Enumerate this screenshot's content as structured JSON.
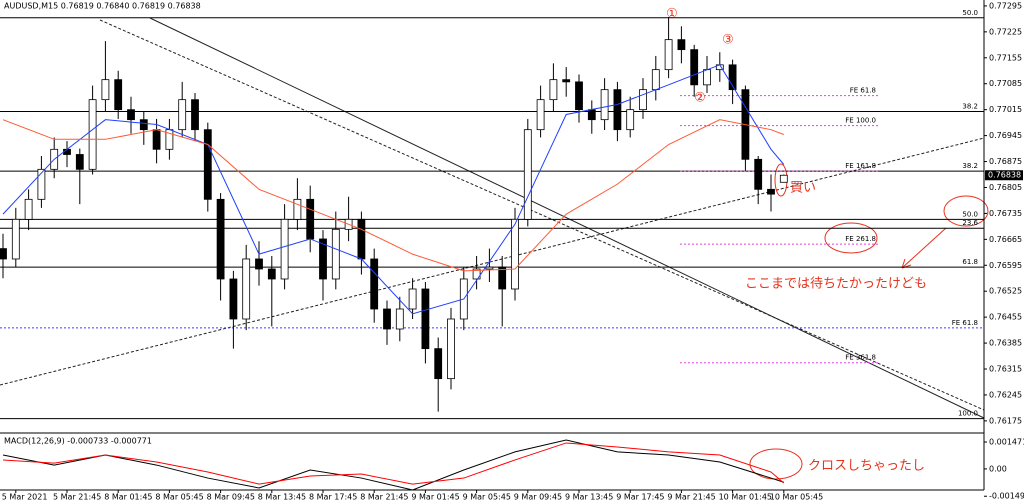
{
  "chart_data": [
    {
      "type": "candlestick",
      "title": "AUDUSD,M15  0.76819 0.76840 0.76819 0.76838",
      "categories": [
        null,
        "5 Mar 2021",
        null,
        null,
        null,
        "5 Mar 21:45",
        null,
        null,
        null,
        "8 Mar 01:45",
        null,
        null,
        null,
        "8 Mar 05:45",
        null,
        null,
        null,
        "8 Mar 09:45",
        null,
        null,
        null,
        "8 Mar 13:45",
        null,
        null,
        null,
        "8 Mar 17:45",
        null,
        null,
        null,
        "8 Mar 21:45",
        null,
        null,
        null,
        "9 Mar 01:45",
        null,
        null,
        null,
        "9 Mar 05:45",
        null,
        null,
        null,
        "9 Mar 09:45",
        null,
        null,
        null,
        "9 Mar 13:45",
        null,
        null,
        null,
        "9 Mar 17:45",
        null,
        null,
        null,
        "9 Mar 21:45",
        null,
        null,
        null,
        "10 Mar 01:45",
        null,
        null,
        null,
        "10 Mar 05:45"
      ],
      "open": [
        0.7664,
        0.76612,
        0.76719,
        0.76773,
        0.76854,
        0.76908,
        0.76894,
        0.76854,
        0.77042,
        0.77096,
        0.77015,
        0.76988,
        0.76961,
        0.76908,
        0.76961,
        0.77042,
        0.76961,
        0.76773,
        0.76558,
        0.7645,
        0.76612,
        0.76585,
        0.76558,
        0.76719,
        0.76773,
        0.76666,
        0.76558,
        0.76692,
        0.76719,
        0.76612,
        0.76477,
        0.76423,
        0.76477,
        0.76531,
        0.7637,
        0.76289,
        0.7645,
        0.76558,
        0.76585,
        0.7659,
        0.76531,
        0.76719,
        0.76961,
        0.77042,
        0.77096,
        0.7709,
        0.77015,
        0.76988,
        0.77069,
        0.76961,
        0.77015,
        0.77069,
        0.77123,
        0.77204,
        0.77177,
        0.77082,
        0.77123,
        0.77136,
        0.77069,
        0.76881,
        0.768,
        0.76819
      ],
      "high": [
        0.7668,
        0.7675,
        0.768,
        0.7689,
        0.7694,
        0.7693,
        0.7691,
        0.7708,
        0.772,
        0.7712,
        0.7705,
        0.7701,
        0.7699,
        0.7699,
        0.7709,
        0.7706,
        0.7698,
        0.7679,
        0.7658,
        0.7665,
        0.7666,
        0.7662,
        0.7676,
        0.7683,
        0.7681,
        0.7669,
        0.7674,
        0.7678,
        0.7674,
        0.7664,
        0.765,
        0.7651,
        0.7656,
        0.7655,
        0.764,
        0.7648,
        0.7659,
        0.7662,
        0.7664,
        0.7662,
        0.7675,
        0.7699,
        0.7708,
        0.7714,
        0.7713,
        0.7711,
        0.7704,
        0.771,
        0.7709,
        0.7705,
        0.771,
        0.7716,
        0.77265,
        0.7724,
        0.7719,
        0.7716,
        0.7717,
        0.7715,
        0.7708,
        0.7689,
        0.7684,
        0.7684
      ],
      "low": [
        0.7656,
        0.7659,
        0.7669,
        0.7675,
        0.7683,
        0.7686,
        0.7676,
        0.7684,
        0.7701,
        0.7699,
        0.7695,
        0.7692,
        0.7687,
        0.7688,
        0.7694,
        0.7693,
        0.7674,
        0.765,
        0.7637,
        0.7642,
        0.7654,
        0.7643,
        0.7653,
        0.7669,
        0.7663,
        0.765,
        0.7653,
        0.7666,
        0.7657,
        0.7644,
        0.7638,
        0.7639,
        0.7645,
        0.7633,
        0.762,
        0.7626,
        0.7642,
        0.7653,
        0.7655,
        0.7643,
        0.765,
        0.767,
        0.7694,
        0.7701,
        0.7705,
        0.7698,
        0.7695,
        0.7696,
        0.7693,
        0.7694,
        0.7699,
        0.7704,
        0.771,
        0.7714,
        0.7705,
        0.7706,
        0.7709,
        0.7703,
        0.7685,
        0.7676,
        0.7674,
        0.76819
      ],
      "close": [
        0.76612,
        0.76719,
        0.76773,
        0.76854,
        0.76908,
        0.76894,
        0.76854,
        0.77042,
        0.77096,
        0.77015,
        0.76988,
        0.76961,
        0.76908,
        0.76961,
        0.77042,
        0.76961,
        0.76773,
        0.76558,
        0.7645,
        0.76612,
        0.76585,
        0.76558,
        0.76719,
        0.76773,
        0.76666,
        0.76558,
        0.76692,
        0.76719,
        0.76612,
        0.76477,
        0.76423,
        0.76477,
        0.76531,
        0.7637,
        0.76289,
        0.7645,
        0.76558,
        0.76585,
        0.7659,
        0.76531,
        0.76719,
        0.76961,
        0.77042,
        0.77096,
        0.7709,
        0.77015,
        0.76988,
        0.77069,
        0.76961,
        0.77015,
        0.77069,
        0.77123,
        0.77204,
        0.77177,
        0.77082,
        0.77123,
        0.77136,
        0.77069,
        0.76881,
        0.768,
        0.76787,
        0.76838
      ],
      "overlays": [
        {
          "color": "#1f3fff",
          "x": [
            0,
            4,
            8,
            12,
            16,
            20,
            24,
            28,
            32,
            36,
            40,
            44,
            48,
            52,
            56,
            60,
            61
          ],
          "values": [
            0.76733,
            0.76881,
            0.76988,
            0.76975,
            0.76921,
            0.76625,
            0.76666,
            0.76612,
            0.76464,
            0.76504,
            0.76706,
            0.77002,
            0.77029,
            0.77082,
            0.77136,
            0.76908,
            0.76867
          ]
        },
        {
          "color": "#ff5a36",
          "x": [
            0,
            4,
            8,
            12,
            16,
            20,
            24,
            28,
            32,
            36,
            40,
            44,
            48,
            52,
            56,
            60,
            61
          ],
          "values": [
            0.76988,
            0.76935,
            0.76935,
            0.76961,
            0.76921,
            0.768,
            0.76746,
            0.76692,
            0.76625,
            0.7658,
            0.76585,
            0.76733,
            0.76814,
            0.76921,
            0.76988,
            0.76961,
            0.76948
          ]
        }
      ],
      "levels": [
        {
          "value": 0.77263,
          "label": "50.0",
          "style": "fibo"
        },
        {
          "value": 0.7701,
          "label": "38.2",
          "style": "fibo"
        },
        {
          "value": 0.76849,
          "label": "38.2",
          "style": "fibo"
        },
        {
          "value": 0.76719,
          "label": "50.0",
          "style": "fibo"
        },
        {
          "value": 0.76695,
          "label": "23.6",
          "style": "fibo"
        },
        {
          "value": 0.7659,
          "label": "61.8",
          "style": "fibo"
        },
        {
          "value": 0.76181,
          "label": "100.0",
          "style": "fibo"
        },
        {
          "value": 0.76426,
          "label": "FE 61.8",
          "style": "fe-long"
        },
        {
          "value": 0.77053,
          "label": "FE 61.8",
          "style": "fe"
        },
        {
          "value": 0.76972,
          "label": "FE 100.0",
          "style": "fe"
        },
        {
          "value": 0.76849,
          "label": "FE 161.8",
          "style": "fe"
        },
        {
          "value": 0.76652,
          "label": "FE 261.8",
          "style": "fe"
        },
        {
          "value": 0.76332,
          "label": "FE 361.8",
          "style": "fe"
        }
      ],
      "ylim": [
        0.76145,
        0.77311
      ],
      "yticks": [
        0.77295,
        0.77225,
        0.77155,
        0.77085,
        0.77015,
        0.76945,
        0.76875,
        0.76805,
        0.76735,
        0.76665,
        0.76595,
        0.76525,
        0.76455,
        0.76385,
        0.76315,
        0.76245,
        0.76175
      ],
      "annotations": [
        "①",
        "②",
        "③",
        "買い",
        "ここまでは待ちたかったけども",
        "クロスしちゃったし"
      ]
    },
    {
      "type": "line",
      "title": "MACD(12,26,9) -0.000733 -0.000771",
      "series": [
        {
          "color": "#000000",
          "x": [
            0,
            4,
            8,
            12,
            16,
            20,
            24,
            28,
            32,
            36,
            40,
            44,
            48,
            52,
            56,
            60,
            61
          ],
          "values": [
            0.00076,
            0.00021,
            0.00076,
            0.00021,
            -0.0005,
            -0.00104,
            -6e-05,
            -0.0005,
            -0.00115,
            -6e-05,
            0.00093,
            0.00158,
            0.00093,
            0.00076,
            0.00038,
            -0.0005,
            -0.00073
          ]
        },
        {
          "color": "#ff0000",
          "x": [
            0,
            4,
            8,
            12,
            16,
            20,
            24,
            28,
            32,
            36,
            40,
            44,
            48,
            52,
            56,
            60,
            61
          ],
          "values": [
            0.00049,
            0.00032,
            0.00076,
            0.00038,
            -0.00017,
            -0.00083,
            -0.00039,
            -0.00028,
            -0.00083,
            -0.0005,
            0.00049,
            0.00142,
            0.0012,
            0.00093,
            0.00076,
            -0.00017,
            -0.00077
          ]
        }
      ],
      "ylim": [
        -0.0017,
        0.0018
      ],
      "yticks": [
        0.001471,
        {
          "value": 0,
          "label": "0.00"
        },
        -0.001494
      ]
    }
  ]
}
